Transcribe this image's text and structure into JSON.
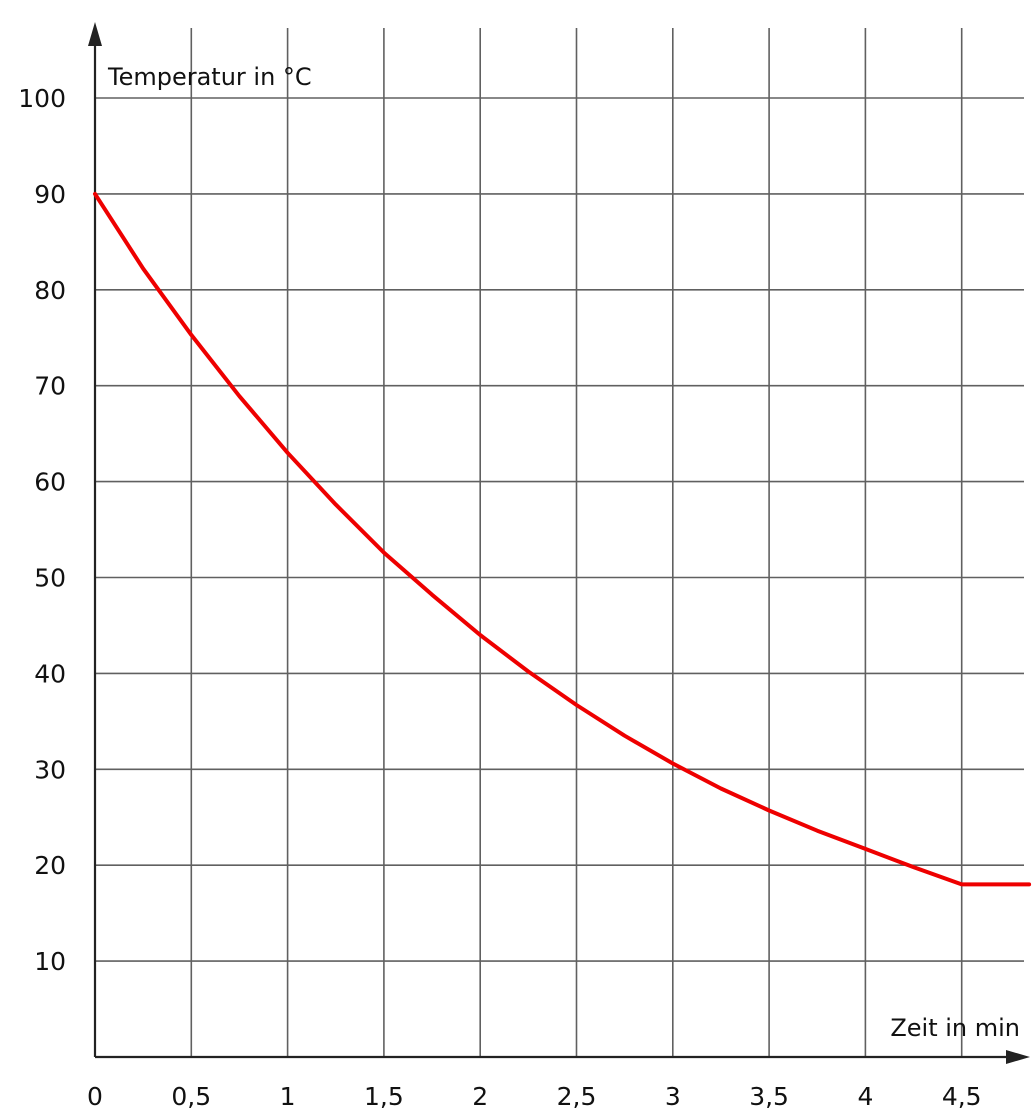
{
  "chart_data": {
    "type": "line",
    "title": "",
    "xlabel": "Zeit in min",
    "ylabel": "Temperatur in °C",
    "xlim": [
      0,
      4.85
    ],
    "ylim": [
      0,
      100
    ],
    "x_ticks": [
      0,
      0.5,
      1,
      1.5,
      2,
      2.5,
      3,
      3.5,
      4,
      4.5
    ],
    "x_tick_labels": [
      "0",
      "0,5",
      "1",
      "1,5",
      "2",
      "2,5",
      "3",
      "3,5",
      "4",
      "4,5"
    ],
    "y_ticks": [
      10,
      20,
      30,
      40,
      50,
      60,
      70,
      80,
      90,
      100
    ],
    "y_tick_labels": [
      "10",
      "20",
      "30",
      "40",
      "50",
      "60",
      "70",
      "80",
      "90",
      "100"
    ],
    "grid": true,
    "series": [
      {
        "color": "#ee0000",
        "x": [
          0,
          0.25,
          0.5,
          0.75,
          1,
          1.25,
          1.5,
          1.75,
          2,
          2.25,
          2.5,
          2.75,
          3,
          3.25,
          3.5,
          3.75,
          4,
          4.25,
          4.5,
          4.85
        ],
        "y": [
          90,
          82.2,
          75.3,
          68.9,
          63.0,
          57.6,
          52.6,
          48.2,
          44.0,
          40.2,
          36.7,
          33.5,
          30.6,
          28.0,
          25.7,
          23.6,
          21.7,
          19.8,
          18.0,
          18.0
        ]
      }
    ]
  }
}
